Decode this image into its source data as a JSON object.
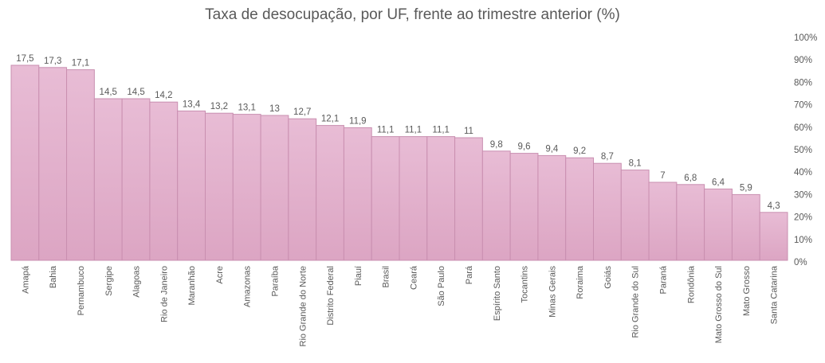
{
  "chart_data": {
    "type": "bar",
    "title": "Taxa de desocupação, por UF, frente ao trimestre anterior (%)",
    "xlabel": "",
    "ylabel": "",
    "categories": [
      "Amapá",
      "Bahia",
      "Pernambuco",
      "Sergipe",
      "Alagoas",
      "Rio de Janeiro",
      "Maranhão",
      "Acre",
      "Amazonas",
      "Paraíba",
      "Rio Grande do Norte",
      "Distrito Federal",
      "Piauí",
      "Brasil",
      "Ceará",
      "São Paulo",
      "Pará",
      "Espírito Santo",
      "Tocantins",
      "Minas Gerais",
      "Roraima",
      "Goiás",
      "Rio Grande do Sul",
      "Paraná",
      "Rondônia",
      "Mato Grosso do Sul",
      "Mato Grosso",
      "Santa Catarina"
    ],
    "value_labels": [
      "17,5",
      "17,3",
      "17,1",
      "14,5",
      "14,5",
      "14,2",
      "13,4",
      "13,2",
      "13,1",
      "13",
      "12,7",
      "12,1",
      "11,9",
      "11,1",
      "11,1",
      "11,1",
      "11",
      "9,8",
      "9,6",
      "9,4",
      "9,2",
      "8,7",
      "8,1",
      "7",
      "6,8",
      "6,4",
      "5,9",
      "4,3"
    ],
    "values": [
      17.5,
      17.3,
      17.1,
      14.5,
      14.5,
      14.2,
      13.4,
      13.2,
      13.1,
      13.0,
      12.7,
      12.1,
      11.9,
      11.1,
      11.1,
      11.1,
      11.0,
      9.8,
      9.6,
      9.4,
      9.2,
      8.7,
      8.1,
      7.0,
      6.8,
      6.4,
      5.9,
      4.3
    ],
    "right_axis_ticks": [
      "0%",
      "10%",
      "20%",
      "30%",
      "40%",
      "50%",
      "60%",
      "70%",
      "80%",
      "90%",
      "100%"
    ],
    "ylim": [
      0,
      20
    ],
    "grid": false,
    "legend": "none",
    "colors": {
      "bar_fill": "#e2aecb",
      "bar_stroke": "#c98fb0",
      "text": "#595959"
    }
  }
}
